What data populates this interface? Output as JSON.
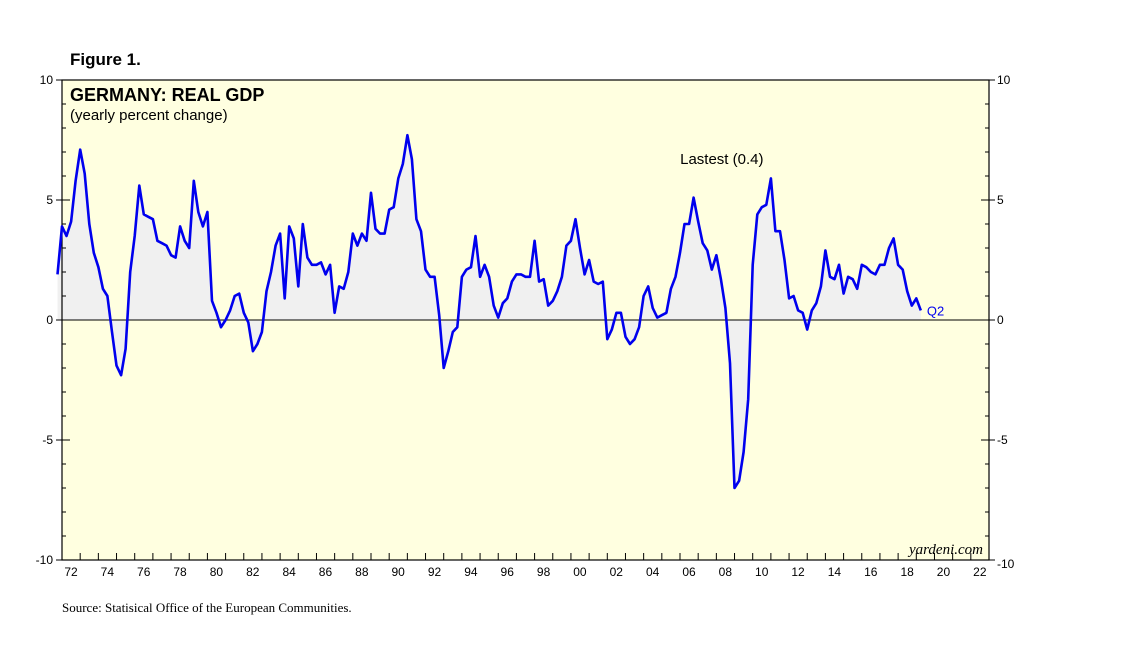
{
  "figure_label": "Figure 1.",
  "source": "Source: Statisical Office of the European Communities.",
  "watermark": "yardeni.com",
  "colors": {
    "plot_bg": "#FFFFE0",
    "line": "#0000EE",
    "fill": "#F0F0F0",
    "axis": "#000000"
  },
  "chart_data": {
    "type": "area",
    "title": "GERMANY: REAL GDP",
    "subtitle": "(yearly percent change)",
    "annotation": "Lastest (0.4)",
    "end_label": "Q2",
    "ylim": [
      -10,
      10
    ],
    "xlim": [
      1972,
      2023
    ],
    "yticks_left": [
      "10",
      "5",
      "0",
      "-5",
      "-10"
    ],
    "yticks_right": [
      "10",
      "5",
      "0",
      "-5",
      "-10"
    ],
    "ytick_values": [
      10,
      5,
      0,
      -5,
      -10
    ],
    "xtick_labels": [
      "72",
      "74",
      "76",
      "78",
      "80",
      "82",
      "84",
      "86",
      "88",
      "90",
      "92",
      "94",
      "96",
      "98",
      "00",
      "02",
      "04",
      "06",
      "08",
      "10",
      "12",
      "14",
      "16",
      "18",
      "20",
      "22"
    ],
    "xtick_years": [
      1972,
      1974,
      1976,
      1978,
      1980,
      1982,
      1984,
      1986,
      1988,
      1990,
      1992,
      1994,
      1996,
      1998,
      2000,
      2002,
      2004,
      2006,
      2008,
      2010,
      2012,
      2014,
      2016,
      2018,
      2020,
      2022
    ],
    "series": [
      {
        "name": "Real GDP yoy %",
        "points": [
          [
            1971.75,
            1.9
          ],
          [
            1972.0,
            3.9
          ],
          [
            1972.25,
            3.5
          ],
          [
            1972.5,
            4.1
          ],
          [
            1972.75,
            5.8
          ],
          [
            1973.0,
            7.1
          ],
          [
            1973.25,
            6.1
          ],
          [
            1973.5,
            4.0
          ],
          [
            1973.75,
            2.8
          ],
          [
            1974.0,
            2.2
          ],
          [
            1974.25,
            1.3
          ],
          [
            1974.5,
            1.0
          ],
          [
            1974.75,
            -0.5
          ],
          [
            1975.0,
            -1.9
          ],
          [
            1975.25,
            -2.3
          ],
          [
            1975.5,
            -1.2
          ],
          [
            1975.75,
            2.0
          ],
          [
            1976.0,
            3.5
          ],
          [
            1976.25,
            5.6
          ],
          [
            1976.5,
            4.4
          ],
          [
            1976.75,
            4.3
          ],
          [
            1977.0,
            4.2
          ],
          [
            1977.25,
            3.3
          ],
          [
            1977.5,
            3.2
          ],
          [
            1977.75,
            3.1
          ],
          [
            1978.0,
            2.7
          ],
          [
            1978.25,
            2.6
          ],
          [
            1978.5,
            3.9
          ],
          [
            1978.75,
            3.3
          ],
          [
            1979.0,
            3.0
          ],
          [
            1979.25,
            5.8
          ],
          [
            1979.5,
            4.5
          ],
          [
            1979.75,
            3.9
          ],
          [
            1980.0,
            4.5
          ],
          [
            1980.25,
            0.8
          ],
          [
            1980.5,
            0.3
          ],
          [
            1980.75,
            -0.3
          ],
          [
            1981.0,
            0.0
          ],
          [
            1981.25,
            0.4
          ],
          [
            1981.5,
            1.0
          ],
          [
            1981.75,
            1.1
          ],
          [
            1982.0,
            0.3
          ],
          [
            1982.25,
            -0.1
          ],
          [
            1982.5,
            -1.3
          ],
          [
            1982.75,
            -1.0
          ],
          [
            1983.0,
            -0.5
          ],
          [
            1983.25,
            1.2
          ],
          [
            1983.5,
            2.0
          ],
          [
            1983.75,
            3.1
          ],
          [
            1984.0,
            3.6
          ],
          [
            1984.25,
            0.9
          ],
          [
            1984.5,
            3.9
          ],
          [
            1984.75,
            3.4
          ],
          [
            1985.0,
            1.4
          ],
          [
            1985.25,
            4.0
          ],
          [
            1985.5,
            2.6
          ],
          [
            1985.75,
            2.3
          ],
          [
            1986.0,
            2.3
          ],
          [
            1986.25,
            2.4
          ],
          [
            1986.5,
            1.9
          ],
          [
            1986.75,
            2.3
          ],
          [
            1987.0,
            0.3
          ],
          [
            1987.25,
            1.4
          ],
          [
            1987.5,
            1.3
          ],
          [
            1987.75,
            2.0
          ],
          [
            1988.0,
            3.6
          ],
          [
            1988.25,
            3.1
          ],
          [
            1988.5,
            3.6
          ],
          [
            1988.75,
            3.3
          ],
          [
            1989.0,
            5.3
          ],
          [
            1989.25,
            3.8
          ],
          [
            1989.5,
            3.6
          ],
          [
            1989.75,
            3.6
          ],
          [
            1990.0,
            4.6
          ],
          [
            1990.25,
            4.7
          ],
          [
            1990.5,
            5.9
          ],
          [
            1990.75,
            6.5
          ],
          [
            1991.0,
            7.7
          ],
          [
            1991.25,
            6.7
          ],
          [
            1991.5,
            4.2
          ],
          [
            1991.75,
            3.7
          ],
          [
            1992.0,
            2.1
          ],
          [
            1992.25,
            1.8
          ],
          [
            1992.5,
            1.8
          ],
          [
            1992.75,
            0.2
          ],
          [
            1993.0,
            -2.0
          ],
          [
            1993.25,
            -1.3
          ],
          [
            1993.5,
            -0.5
          ],
          [
            1993.75,
            -0.3
          ],
          [
            1994.0,
            1.8
          ],
          [
            1994.25,
            2.1
          ],
          [
            1994.5,
            2.2
          ],
          [
            1994.75,
            3.5
          ],
          [
            1995.0,
            1.8
          ],
          [
            1995.25,
            2.3
          ],
          [
            1995.5,
            1.8
          ],
          [
            1995.75,
            0.6
          ],
          [
            1996.0,
            0.1
          ],
          [
            1996.25,
            0.7
          ],
          [
            1996.5,
            0.9
          ],
          [
            1996.75,
            1.6
          ],
          [
            1997.0,
            1.9
          ],
          [
            1997.25,
            1.9
          ],
          [
            1997.5,
            1.8
          ],
          [
            1997.75,
            1.8
          ],
          [
            1998.0,
            3.3
          ],
          [
            1998.25,
            1.6
          ],
          [
            1998.5,
            1.7
          ],
          [
            1998.75,
            0.6
          ],
          [
            1999.0,
            0.8
          ],
          [
            1999.25,
            1.2
          ],
          [
            1999.5,
            1.8
          ],
          [
            1999.75,
            3.1
          ],
          [
            2000.0,
            3.3
          ],
          [
            2000.25,
            4.2
          ],
          [
            2000.5,
            3.0
          ],
          [
            2000.75,
            1.9
          ],
          [
            2001.0,
            2.5
          ],
          [
            2001.25,
            1.6
          ],
          [
            2001.5,
            1.5
          ],
          [
            2001.75,
            1.6
          ],
          [
            2002.0,
            -0.8
          ],
          [
            2002.25,
            -0.4
          ],
          [
            2002.5,
            0.3
          ],
          [
            2002.75,
            0.3
          ],
          [
            2003.0,
            -0.7
          ],
          [
            2003.25,
            -1.0
          ],
          [
            2003.5,
            -0.8
          ],
          [
            2003.75,
            -0.3
          ],
          [
            2004.0,
            1.0
          ],
          [
            2004.25,
            1.4
          ],
          [
            2004.5,
            0.5
          ],
          [
            2004.75,
            0.1
          ],
          [
            2005.0,
            0.2
          ],
          [
            2005.25,
            0.3
          ],
          [
            2005.5,
            1.3
          ],
          [
            2005.75,
            1.8
          ],
          [
            2006.0,
            2.8
          ],
          [
            2006.25,
            4.0
          ],
          [
            2006.5,
            4.0
          ],
          [
            2006.75,
            5.1
          ],
          [
            2007.0,
            4.1
          ],
          [
            2007.25,
            3.2
          ],
          [
            2007.5,
            2.9
          ],
          [
            2007.75,
            2.1
          ],
          [
            2008.0,
            2.7
          ],
          [
            2008.25,
            1.7
          ],
          [
            2008.5,
            0.5
          ],
          [
            2008.75,
            -1.8
          ],
          [
            2009.0,
            -7.0
          ],
          [
            2009.25,
            -6.7
          ],
          [
            2009.5,
            -5.5
          ],
          [
            2009.75,
            -3.3
          ],
          [
            2010.0,
            2.3
          ],
          [
            2010.25,
            4.4
          ],
          [
            2010.5,
            4.7
          ],
          [
            2010.75,
            4.8
          ],
          [
            2011.0,
            5.9
          ],
          [
            2011.25,
            3.7
          ],
          [
            2011.5,
            3.7
          ],
          [
            2011.75,
            2.5
          ],
          [
            2012.0,
            0.9
          ],
          [
            2012.25,
            1.0
          ],
          [
            2012.5,
            0.4
          ],
          [
            2012.75,
            0.3
          ],
          [
            2013.0,
            -0.4
          ],
          [
            2013.25,
            0.4
          ],
          [
            2013.5,
            0.7
          ],
          [
            2013.75,
            1.4
          ],
          [
            2014.0,
            2.9
          ],
          [
            2014.25,
            1.8
          ],
          [
            2014.5,
            1.7
          ],
          [
            2014.75,
            2.3
          ],
          [
            2015.0,
            1.1
          ],
          [
            2015.25,
            1.8
          ],
          [
            2015.5,
            1.7
          ],
          [
            2015.75,
            1.3
          ],
          [
            2016.0,
            2.3
          ],
          [
            2016.25,
            2.2
          ],
          [
            2016.5,
            2.0
          ],
          [
            2016.75,
            1.9
          ],
          [
            2017.0,
            2.3
          ],
          [
            2017.25,
            2.3
          ],
          [
            2017.5,
            3.0
          ],
          [
            2017.75,
            3.4
          ],
          [
            2018.0,
            2.3
          ],
          [
            2018.25,
            2.1
          ],
          [
            2018.5,
            1.2
          ],
          [
            2018.75,
            0.6
          ],
          [
            2019.0,
            0.9
          ],
          [
            2019.25,
            0.4
          ]
        ]
      }
    ]
  }
}
